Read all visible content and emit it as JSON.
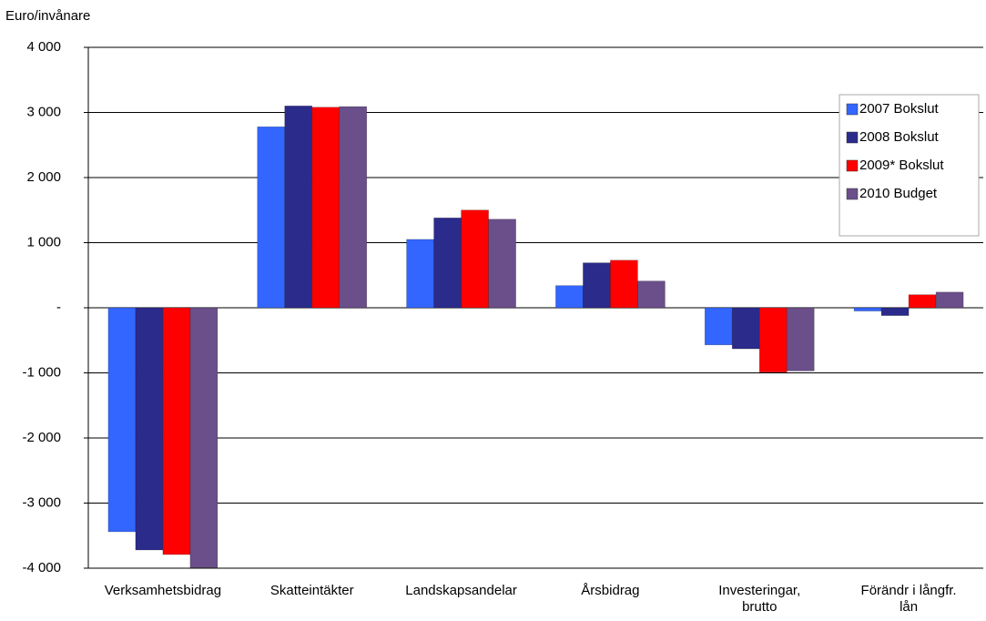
{
  "chart_data": {
    "type": "bar",
    "y_label": "Euro/invånare",
    "categories": [
      "Verksamhetsbidrag",
      "Skatteintäkter",
      "Landskapsandelar",
      "Årsbidrag",
      "Investeringar, brutto",
      "Förändr i långfr. lån"
    ],
    "series": [
      {
        "name": "2007 Bokslut",
        "color": "#3366ff",
        "values": [
          -3440,
          2780,
          1050,
          340,
          -570,
          -50
        ]
      },
      {
        "name": "2008 Bokslut",
        "color": "#2b2b8c",
        "values": [
          -3720,
          3100,
          1380,
          690,
          -630,
          -120
        ]
      },
      {
        "name": "2009* Bokslut",
        "color": "#ff0000",
        "values": [
          -3790,
          3080,
          1500,
          730,
          -990,
          200
        ]
      },
      {
        "name": "2010 Budget",
        "color": "#6a4f8a",
        "values": [
          -3990,
          3090,
          1360,
          410,
          -970,
          240
        ]
      }
    ],
    "ylim": [
      -4000,
      4000
    ],
    "yticks": [
      {
        "value": -4000,
        "label": "-4 000"
      },
      {
        "value": -3000,
        "label": "-3 000"
      },
      {
        "value": -2000,
        "label": "-2 000"
      },
      {
        "value": -1000,
        "label": "-1 000"
      },
      {
        "value": 0,
        "label": "-"
      },
      {
        "value": 1000,
        "label": "1 000"
      },
      {
        "value": 2000,
        "label": "2 000"
      },
      {
        "value": 3000,
        "label": "3 000"
      },
      {
        "value": 4000,
        "label": "4 000"
      }
    ],
    "grid": true,
    "legend": "top-right"
  }
}
